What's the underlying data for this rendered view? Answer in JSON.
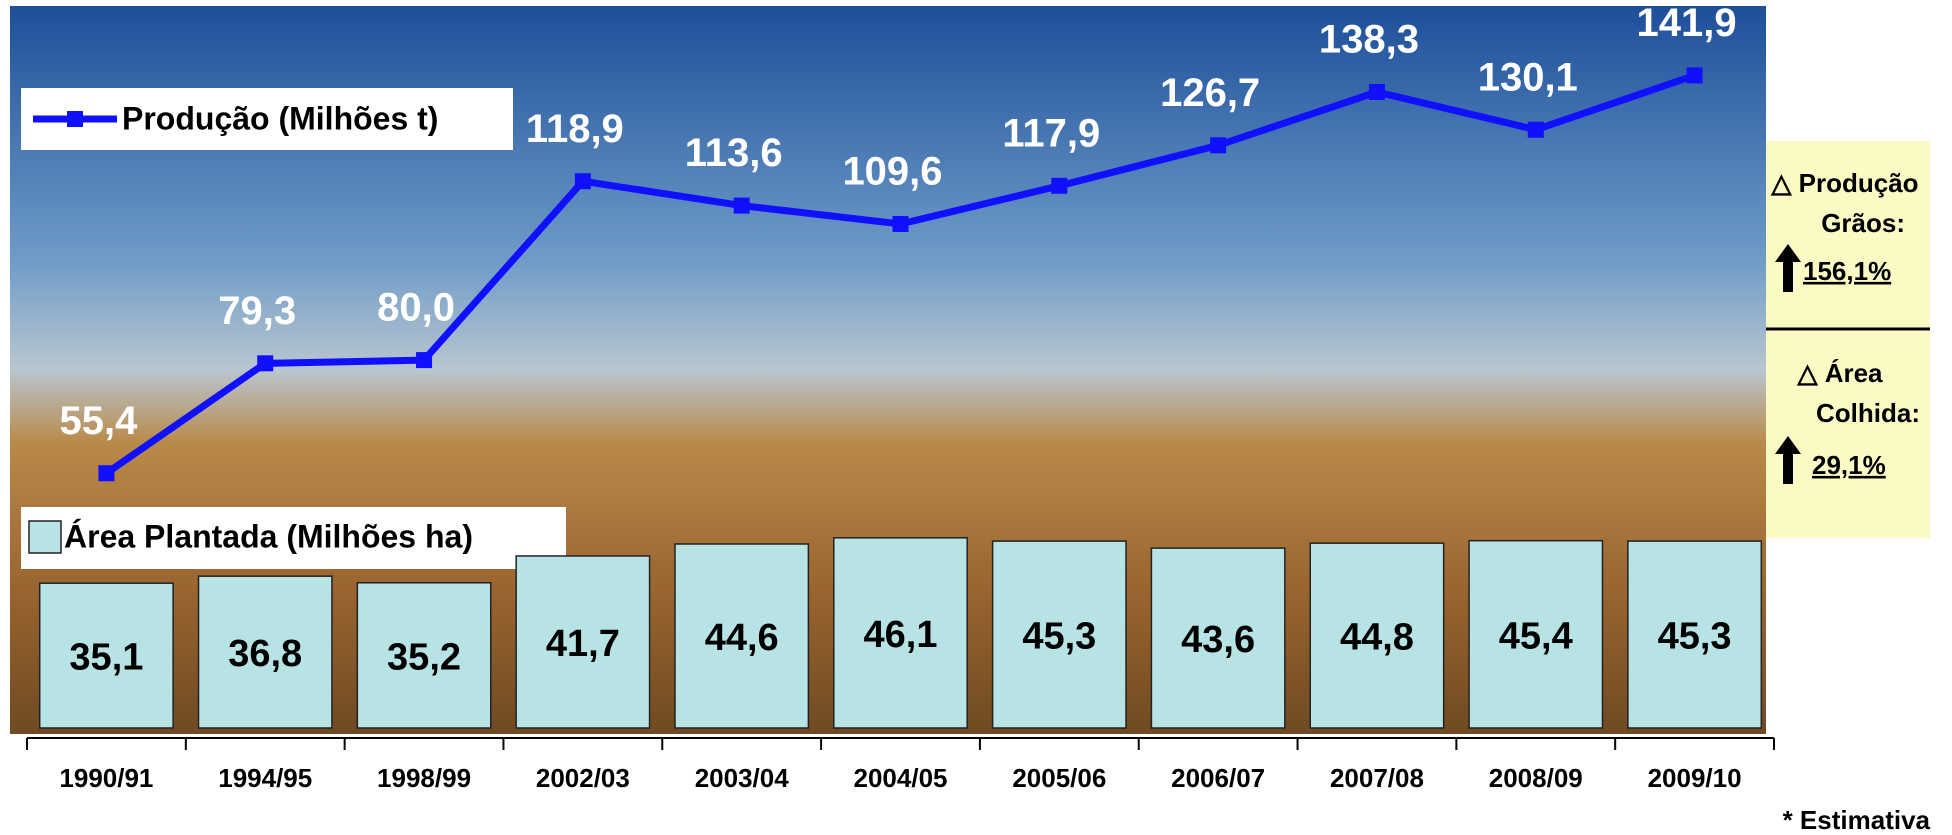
{
  "chart_data": {
    "type": "combo",
    "categories": [
      "1990/91",
      "1994/95",
      "1998/99",
      "2002/03",
      "2003/04",
      "2004/05",
      "2005/06",
      "2006/07",
      "2007/08",
      "2008/09",
      "2009/10"
    ],
    "series": [
      {
        "name": "Área Plantada (Milhões ha)",
        "type": "bar",
        "color": "#b7e3e4",
        "values": [
          35.1,
          36.8,
          35.2,
          41.7,
          44.6,
          46.1,
          45.3,
          43.6,
          44.8,
          45.4,
          45.3
        ],
        "value_labels": [
          "35,1",
          "36,8",
          "35,2",
          "41,7",
          "44,6",
          "46,1",
          "45,3",
          "43,6",
          "44,8",
          "45,4",
          "45,3"
        ]
      },
      {
        "name": "Produção (Milhões t)",
        "type": "line",
        "axis": "y2",
        "color": "#1010ff",
        "values": [
          55.4,
          79.3,
          80.0,
          118.9,
          113.6,
          109.6,
          117.9,
          126.7,
          138.3,
          130.1,
          141.9
        ],
        "value_labels": [
          "55,4",
          "79,3",
          "80,0",
          "118,9",
          "113,6",
          "109,6",
          "117,9",
          "126,7",
          "138,3",
          "130,1",
          "141,9"
        ]
      }
    ],
    "ylim": [
      0,
      175
    ],
    "y2lim": [
      0,
      157
    ],
    "right_panel": {
      "production_label": "△ Produção",
      "production_sub": "Grãos:",
      "production_change": "156,1%",
      "area_label": "△  Área",
      "area_sub": "Colhida:",
      "area_change": "29,1%"
    },
    "footnote": "* Estimativa"
  }
}
